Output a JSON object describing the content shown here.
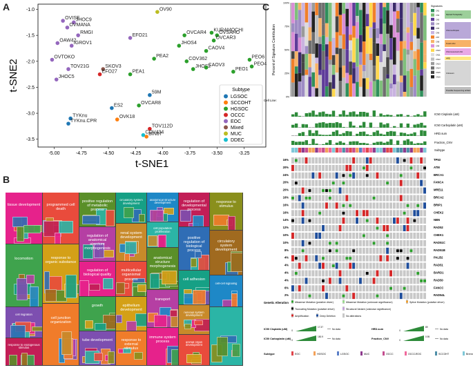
{
  "panelA": {
    "letter": "A",
    "xlabel": "t-SNE1",
    "ylabel": "t-SNE2",
    "xticks": [
      "-5.00",
      "-4.75",
      "-4.50",
      "-4.25",
      "-4.00",
      "-3.75",
      "-3.50",
      "-3.25"
    ],
    "yticks": [
      "-1.0",
      "-1.5",
      "-2.0",
      "-2.5",
      "-3.0",
      "-3.5"
    ],
    "legend_title": "Subtype",
    "legend": [
      {
        "name": "LGSOC",
        "color": "#1f77b4"
      },
      {
        "name": "SCCOHT",
        "color": "#ff7f0e"
      },
      {
        "name": "HGSOC",
        "color": "#2ca02c"
      },
      {
        "name": "OCCC",
        "color": "#d62728"
      },
      {
        "name": "EOC",
        "color": "#9467bd"
      },
      {
        "name": "Mixed",
        "color": "#8c564b"
      },
      {
        "name": "MUC",
        "color": "#bcbd22"
      },
      {
        "name": "DDEC",
        "color": "#17becf"
      }
    ]
  },
  "chart_data": {
    "type": "scatter",
    "xlabel": "t-SNE1",
    "ylabel": "t-SNE2",
    "xlim": [
      -5.15,
      -3.05
    ],
    "ylim": [
      -3.65,
      -0.9
    ],
    "points": [
      {
        "label": "OVISE",
        "x": -4.92,
        "y": -1.22,
        "subtype": "EOC"
      },
      {
        "label": "JHOC9",
        "x": -4.82,
        "y": -1.25,
        "subtype": "EOC"
      },
      {
        "label": "OVMANA",
        "x": -4.88,
        "y": -1.35,
        "subtype": "EOC"
      },
      {
        "label": "RMGI",
        "x": -4.78,
        "y": -1.5,
        "subtype": "EOC"
      },
      {
        "label": "OAW42",
        "x": -4.97,
        "y": -1.65,
        "subtype": "EOC"
      },
      {
        "label": "IGROV1",
        "x": -4.84,
        "y": -1.7,
        "subtype": "EOC"
      },
      {
        "label": "OVTOKO",
        "x": -5.02,
        "y": -1.97,
        "subtype": "EOC"
      },
      {
        "label": "TOV21G",
        "x": -4.87,
        "y": -2.15,
        "subtype": "EOC"
      },
      {
        "label": "JHOC5",
        "x": -4.98,
        "y": -2.35,
        "subtype": "EOC"
      },
      {
        "label": "SKOV3",
        "x": -4.55,
        "y": -2.15,
        "subtype": "Mixed"
      },
      {
        "label": "EFO27",
        "x": -4.58,
        "y": -2.25,
        "subtype": "OCCC"
      },
      {
        "label": "EFO21",
        "x": -4.3,
        "y": -1.55,
        "subtype": "EOC"
      },
      {
        "label": "OV90",
        "x": -4.05,
        "y": -1.05,
        "subtype": "MUC"
      },
      {
        "label": "OVCAR4",
        "x": -3.8,
        "y": -1.5,
        "subtype": "HGSOC"
      },
      {
        "label": "KURAMOCHI",
        "x": -3.55,
        "y": -1.45,
        "subtype": "HGSOC"
      },
      {
        "label": "OVSAHO",
        "x": -3.5,
        "y": -1.5,
        "subtype": "HGSOC"
      },
      {
        "label": "OVCAR3",
        "x": -3.53,
        "y": -1.6,
        "subtype": "HGSOC"
      },
      {
        "label": "JHOS4",
        "x": -3.85,
        "y": -1.7,
        "subtype": "HGSOC"
      },
      {
        "label": "CAOV4",
        "x": -3.6,
        "y": -1.8,
        "subtype": "HGSOC"
      },
      {
        "label": "PEA2",
        "x": -4.08,
        "y": -1.95,
        "subtype": "HGSOC"
      },
      {
        "label": "COV362",
        "x": -3.78,
        "y": -2.0,
        "subtype": "HGSOC"
      },
      {
        "label": "PEA1",
        "x": -4.3,
        "y": -2.25,
        "subtype": "HGSOC"
      },
      {
        "label": "JHOS2",
        "x": -3.72,
        "y": -2.15,
        "subtype": "HGSOC"
      },
      {
        "label": "CAOV3",
        "x": -3.6,
        "y": -2.12,
        "subtype": "HGSOC"
      },
      {
        "label": "PEO1",
        "x": -3.35,
        "y": -2.2,
        "subtype": "HGSOC"
      },
      {
        "label": "PEO6",
        "x": -3.2,
        "y": -1.97,
        "subtype": "HGSOC"
      },
      {
        "label": "PEO4",
        "x": -3.18,
        "y": -2.1,
        "subtype": "HGSOC"
      },
      {
        "label": "59M",
        "x": -4.12,
        "y": -2.65,
        "subtype": "LGSOC"
      },
      {
        "label": "OVCAR8",
        "x": -4.22,
        "y": -2.85,
        "subtype": "HGSOC"
      },
      {
        "label": "ES2",
        "x": -4.47,
        "y": -2.9,
        "subtype": "LGSOC"
      },
      {
        "label": "TYKnu",
        "x": -4.85,
        "y": -3.1,
        "subtype": "LGSOC"
      },
      {
        "label": "TYKnu.CPR",
        "x": -4.87,
        "y": -3.2,
        "subtype": "LGSOC"
      },
      {
        "label": "OVK18",
        "x": -4.42,
        "y": -3.12,
        "subtype": "SCCOHT"
      },
      {
        "label": "TOV112D",
        "x": -4.12,
        "y": -3.3,
        "subtype": "OCCC"
      },
      {
        "label": "COV434",
        "x": -4.18,
        "y": -3.42,
        "subtype": "DDEC"
      },
      {
        "label": "BIN67",
        "x": -4.15,
        "y": -3.45,
        "subtype": "SCCOHT"
      }
    ]
  },
  "panelB": {
    "letter": "B",
    "labels": [
      "tissue development",
      "locomotion",
      "cell migration",
      "response to endogenous stimulus",
      "programmed cell death",
      "response to organic substance",
      "cell junction organization",
      "positive regulation of metabolic process",
      "regulation of anatomical structure morphogenesis",
      "regulation of biological quality",
      "growth",
      "tube development",
      "circulatory system development",
      "renal system development",
      "multicellular organismal process",
      "epithelium development",
      "response to external stimulus",
      "anatomical structure development",
      "cell population proliferation",
      "anatomical structure morphogenesis",
      "transport",
      "immune system process",
      "regulation of developmental process",
      "positive regulation of biological process",
      "cell adhesion",
      "nervous system development",
      "animal organ development",
      "response to stimulus",
      "circulatory system development",
      "cell-cell signaling"
    ]
  },
  "panelC": {
    "letter": "C",
    "ylabel": "Percent of Signature Contribution",
    "yticks": [
      "100%",
      "75%",
      "50%",
      "25%",
      "0%"
    ],
    "cellline_label": "Cell Line",
    "signature_legend_title": "Signatures",
    "signatures": [
      {
        "name": "CN1",
        "color": "#2f8f5b"
      },
      {
        "name": "CN2",
        "color": "#7fbf7b"
      },
      {
        "name": "CN3",
        "color": "#5e3c99"
      },
      {
        "name": "CN4",
        "color": "#9e8cc4"
      },
      {
        "name": "CN5",
        "color": "#3b2a6b"
      },
      {
        "name": "CN6",
        "color": "#c9b3e0"
      },
      {
        "name": "CN7",
        "color": "#f07f2a"
      },
      {
        "name": "CN8",
        "color": "#f7b267"
      },
      {
        "name": "CN9",
        "color": "#d98ed6"
      },
      {
        "name": "CN10",
        "color": "#ffd84d"
      },
      {
        "name": "CN11",
        "color": "#dcdcdc"
      },
      {
        "name": "CN12",
        "color": "#bfbfbf"
      },
      {
        "name": "CN13",
        "color": "#9a9a9a"
      },
      {
        "name": "CN14",
        "color": "#6e6e6e"
      },
      {
        "name": "CN15",
        "color": "#454545"
      },
      {
        "name": "CN16",
        "color": "#222222"
      }
    ],
    "signature_groups": [
      "Diploid/ Tetraploidy",
      "Chromothripsis",
      "Focal LOH",
      "Chromosomal LOH",
      "HRD",
      "Unknown",
      "Possible Sequencing artifact"
    ],
    "track_labels": [
      "IC50 Cisplatin (uM)",
      "IC50 Carboplatin (uM)",
      "HRD.sum",
      "Fraction_CNV",
      "Subtype"
    ],
    "genes": [
      {
        "pct": "16%",
        "name": "TP53"
      },
      {
        "pct": "20%",
        "name": "ATM"
      },
      {
        "pct": "24%",
        "name": "BRCA1"
      },
      {
        "pct": "20%",
        "name": "FANCA"
      },
      {
        "pct": "20%",
        "name": "MRE11"
      },
      {
        "pct": "16%",
        "name": "BRCA2"
      },
      {
        "pct": "16%",
        "name": "BRIP1"
      },
      {
        "pct": "16%",
        "name": "CHEK2"
      },
      {
        "pct": "14%",
        "name": "NBN"
      },
      {
        "pct": "12%",
        "name": "RAD52"
      },
      {
        "pct": "10%",
        "name": "CHEK1"
      },
      {
        "pct": "10%",
        "name": "RAD51C"
      },
      {
        "pct": "8%",
        "name": "RAD51B"
      },
      {
        "pct": "4%",
        "name": "PALB2"
      },
      {
        "pct": "4%",
        "name": "RAD51"
      },
      {
        "pct": "4%",
        "name": "BARD1"
      },
      {
        "pct": "4%",
        "name": "RAD50"
      },
      {
        "pct": "6%",
        "name": "FANCC"
      },
      {
        "pct": "2%",
        "name": "RAD54L"
      }
    ],
    "alteration_title": "Genetic Alteration",
    "alterations": [
      {
        "name": "Missense Mutation (putative driver)",
        "color": "#2ca02c"
      },
      {
        "name": "Missense Mutation (unknown significance)",
        "color": "#98df8a"
      },
      {
        "name": "Splice Mutation (putative driver)",
        "color": "#f0a030"
      },
      {
        "name": "Truncating Mutation (putative driver)",
        "color": "#000000"
      },
      {
        "name": "Structural Variant (unknown significance)",
        "color": "#c49cde"
      },
      {
        "name": "Amplification",
        "color": "#d62728"
      },
      {
        "name": "Deep Deletion",
        "color": "#1f4e9c"
      },
      {
        "name": "No alterations",
        "color": "#c8c8c8"
      }
    ],
    "scale_legend": [
      {
        "label": "IC50 Cisplatin (uM)",
        "min": "0",
        "max": "17.37",
        "nodata": "No data"
      },
      {
        "label": "IC50 Carboplatin (uM)",
        "min": "0",
        "max": "150.9",
        "nodata": "No data"
      },
      {
        "label": "HRD.sum",
        "min": "0",
        "max": "89",
        "nodata": "No data"
      },
      {
        "label": "Fraction_CNV",
        "min": "0",
        "max": "0.95",
        "nodata": "No data"
      }
    ],
    "subtype_title": "Subtype",
    "subtypes": [
      {
        "name": "EOC",
        "color": "#e0454b"
      },
      {
        "name": "HGSOC",
        "color": "#f4a259"
      },
      {
        "name": "LGSOC",
        "color": "#5b7fc7"
      },
      {
        "name": "MUC",
        "color": "#8e3b8e"
      },
      {
        "name": "OCCC",
        "color": "#c44e8f"
      },
      {
        "name": "OCCC/EOC",
        "color": "#f06a9c"
      },
      {
        "name": "SCCOHT",
        "color": "#4f8fa8"
      },
      {
        "name": "Brenner",
        "color": "#7fc8d8"
      }
    ]
  }
}
